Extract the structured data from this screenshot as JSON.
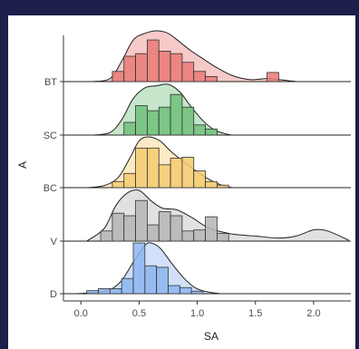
{
  "chart_data": {
    "type": "ridgeline",
    "xlabel": "SA",
    "ylabel": "A",
    "xlim": [
      -0.15,
      2.32
    ],
    "x_ticks": [
      "0.0",
      "0.5",
      "1.0",
      "1.5",
      "2.0"
    ],
    "x_tick_values": [
      0,
      0.5,
      1.0,
      1.5,
      2.0
    ],
    "grid": false,
    "legend": "none",
    "groups": [
      {
        "label": "D",
        "color": "#8db5f0",
        "density": [
          [
            -0.05,
            0
          ],
          [
            0.1,
            0.02
          ],
          [
            0.25,
            0.08
          ],
          [
            0.35,
            0.26
          ],
          [
            0.45,
            0.62
          ],
          [
            0.55,
            0.95
          ],
          [
            0.6,
            1.0
          ],
          [
            0.68,
            0.9
          ],
          [
            0.78,
            0.6
          ],
          [
            0.88,
            0.32
          ],
          [
            0.98,
            0.12
          ],
          [
            1.08,
            0.04
          ],
          [
            1.2,
            0
          ]
        ],
        "hist": {
          "start": 0.05,
          "binwidth": 0.1,
          "heights": [
            0.06,
            0.1,
            0.1,
            0.3,
            1.0,
            0.55,
            0.52,
            0.16,
            0.12,
            0.05
          ]
        }
      },
      {
        "label": "V",
        "color": "#b5b5b5",
        "density": [
          [
            0.05,
            0
          ],
          [
            0.2,
            0.25
          ],
          [
            0.3,
            0.7
          ],
          [
            0.4,
            0.95
          ],
          [
            0.5,
            1.0
          ],
          [
            0.6,
            0.8
          ],
          [
            0.7,
            0.65
          ],
          [
            0.82,
            0.62
          ],
          [
            0.95,
            0.47
          ],
          [
            1.1,
            0.26
          ],
          [
            1.3,
            0.14
          ],
          [
            1.5,
            0.1
          ],
          [
            1.7,
            0.06
          ],
          [
            1.85,
            0.1
          ],
          [
            2.0,
            0.22
          ],
          [
            2.12,
            0.2
          ],
          [
            2.3,
            0.02
          ]
        ],
        "hist": {
          "start": 0.17,
          "binwidth": 0.1,
          "heights": [
            0.2,
            0.55,
            0.5,
            0.8,
            0.32,
            0.58,
            0.5,
            0.2,
            0.22,
            0.48,
            0.15
          ]
        }
      },
      {
        "label": "BC",
        "color": "#f5cb6e",
        "density": [
          [
            0.05,
            0
          ],
          [
            0.2,
            0.04
          ],
          [
            0.32,
            0.2
          ],
          [
            0.42,
            0.58
          ],
          [
            0.5,
            0.92
          ],
          [
            0.58,
            1.0
          ],
          [
            0.68,
            0.92
          ],
          [
            0.78,
            0.7
          ],
          [
            0.9,
            0.48
          ],
          [
            1.02,
            0.28
          ],
          [
            1.12,
            0.14
          ],
          [
            1.22,
            0.04
          ],
          [
            1.3,
            0
          ]
        ],
        "hist": {
          "start": 0.27,
          "binwidth": 0.1,
          "heights": [
            0.12,
            0.28,
            0.78,
            0.78,
            0.45,
            0.58,
            0.6,
            0.33,
            0.12,
            0.05
          ]
        }
      },
      {
        "label": "SC",
        "color": "#6fc07a",
        "density": [
          [
            0.1,
            0
          ],
          [
            0.25,
            0.05
          ],
          [
            0.35,
            0.3
          ],
          [
            0.45,
            0.72
          ],
          [
            0.55,
            0.93
          ],
          [
            0.65,
            0.97
          ],
          [
            0.75,
            1.0
          ],
          [
            0.85,
            0.85
          ],
          [
            0.95,
            0.55
          ],
          [
            1.05,
            0.28
          ],
          [
            1.15,
            0.1
          ],
          [
            1.25,
            0.02
          ],
          [
            1.3,
            0
          ]
        ],
        "hist": {
          "start": 0.37,
          "binwidth": 0.1,
          "heights": [
            0.25,
            0.58,
            0.48,
            0.55,
            0.8,
            0.55,
            0.2,
            0.12
          ]
        }
      },
      {
        "label": "BT",
        "color": "#e97a76",
        "density": [
          [
            0.1,
            0
          ],
          [
            0.25,
            0.06
          ],
          [
            0.35,
            0.4
          ],
          [
            0.45,
            0.82
          ],
          [
            0.55,
            0.95
          ],
          [
            0.65,
            1.0
          ],
          [
            0.75,
            0.95
          ],
          [
            0.85,
            0.78
          ],
          [
            0.95,
            0.6
          ],
          [
            1.05,
            0.45
          ],
          [
            1.15,
            0.3
          ],
          [
            1.3,
            0.12
          ],
          [
            1.45,
            0.04
          ],
          [
            1.6,
            0.06
          ],
          [
            1.7,
            0.04
          ],
          [
            1.85,
            0
          ]
        ],
        "hist": {
          "start": 0.27,
          "binwidth": 0.1,
          "heights": [
            0.2,
            0.5,
            0.55,
            0.82,
            0.6,
            0.55,
            0.38,
            0.2,
            0.1
          ]
        },
        "hist_extra": [
          {
            "x0": 1.6,
            "x1": 1.7,
            "height": 0.18
          }
        ]
      }
    ]
  }
}
